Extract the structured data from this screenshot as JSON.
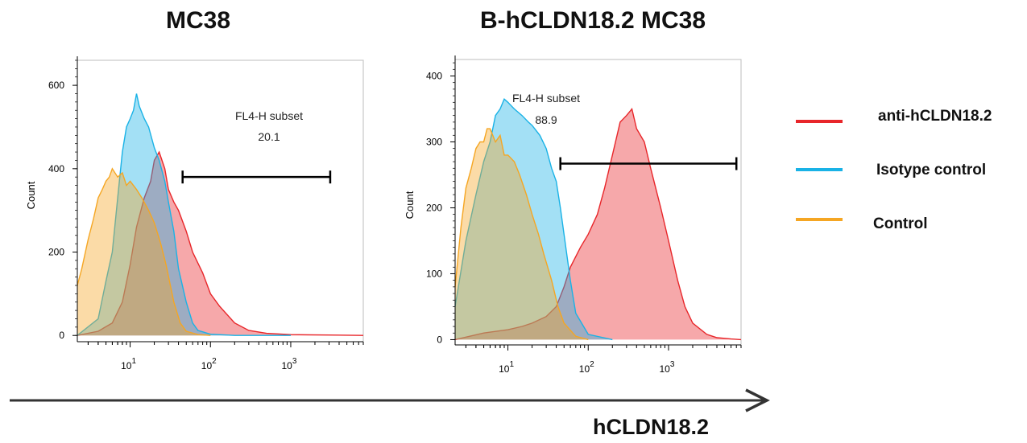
{
  "chart_data": [
    {
      "type": "area",
      "title": "MC38",
      "ylabel": "Count",
      "x_scale": "log",
      "xlim": [
        2.2,
        8000
      ],
      "ylim": [
        -15,
        660
      ],
      "yticks": [
        0,
        200,
        400,
        600
      ],
      "xticks": [
        {
          "value": 10,
          "label": "1"
        },
        {
          "value": 100,
          "label": "2"
        },
        {
          "value": 1000,
          "label": "3"
        }
      ],
      "gate": {
        "name": "FL4-H subset",
        "value": "20.1",
        "x_range": [
          45,
          3100
        ],
        "y": 380
      },
      "series": [
        {
          "name": "anti-hCLDN18.2",
          "color": "#e8262a",
          "x": [
            2.2,
            4,
            6,
            8,
            10,
            12,
            15,
            18,
            20,
            23,
            27,
            30,
            35,
            40,
            50,
            60,
            80,
            100,
            130,
            200,
            300,
            500,
            1000,
            3000,
            8000
          ],
          "y": [
            0,
            10,
            30,
            80,
            170,
            260,
            330,
            370,
            420,
            440,
            400,
            350,
            320,
            300,
            250,
            200,
            150,
            100,
            70,
            30,
            12,
            5,
            2,
            1,
            0
          ]
        },
        {
          "name": "Isotype control",
          "color": "#19b2e6",
          "x": [
            2.2,
            4,
            5,
            6,
            7,
            8,
            9,
            10,
            11,
            12,
            13,
            15,
            17,
            20,
            23,
            27,
            30,
            35,
            40,
            50,
            60,
            70,
            100,
            200,
            1000
          ],
          "y": [
            0,
            40,
            130,
            200,
            330,
            440,
            500,
            520,
            540,
            580,
            550,
            520,
            500,
            450,
            420,
            370,
            320,
            250,
            160,
            80,
            30,
            12,
            3,
            0,
            0
          ]
        },
        {
          "name": "Control",
          "color": "#f5a623",
          "x": [
            2.2,
            2.5,
            3,
            3.5,
            4,
            4.5,
            5,
            5.5,
            6,
            7,
            8,
            9,
            10,
            12,
            14,
            17,
            20,
            24,
            28,
            35,
            42,
            50,
            70,
            100
          ],
          "y": [
            120,
            160,
            230,
            280,
            330,
            350,
            370,
            380,
            400,
            380,
            390,
            360,
            370,
            350,
            330,
            300,
            270,
            220,
            170,
            80,
            30,
            10,
            2,
            0
          ]
        }
      ]
    },
    {
      "type": "area",
      "title": "B-hCLDN18.2 MC38",
      "ylabel": "Count",
      "x_scale": "log",
      "xlim": [
        2.2,
        8000
      ],
      "ylim": [
        -8,
        425
      ],
      "yticks": [
        0,
        100,
        200,
        300,
        400
      ],
      "xticks": [
        {
          "value": 10,
          "label": "1"
        },
        {
          "value": 100,
          "label": "2"
        },
        {
          "value": 1000,
          "label": "3"
        }
      ],
      "gate": {
        "name": "FL4-H subset",
        "value": "88.9",
        "x_range": [
          45,
          7000
        ],
        "y": 267
      },
      "series": [
        {
          "name": "anti-hCLDN18.2",
          "color": "#e8262a",
          "x": [
            2.2,
            5,
            10,
            15,
            20,
            30,
            40,
            50,
            60,
            80,
            100,
            130,
            160,
            200,
            250,
            300,
            350,
            400,
            500,
            600,
            800,
            1000,
            1300,
            1600,
            2000,
            3000,
            4000,
            6000,
            8000
          ],
          "y": [
            0,
            10,
            15,
            20,
            25,
            35,
            50,
            80,
            110,
            140,
            160,
            190,
            230,
            280,
            330,
            340,
            350,
            320,
            300,
            260,
            200,
            150,
            90,
            50,
            25,
            8,
            3,
            1,
            0
          ]
        },
        {
          "name": "Isotype control",
          "color": "#19b2e6",
          "x": [
            2.2,
            3,
            4,
            5,
            6,
            7,
            8,
            9,
            10,
            12,
            15,
            18,
            20,
            25,
            30,
            35,
            40,
            45,
            50,
            60,
            70,
            100,
            200
          ],
          "y": [
            50,
            150,
            220,
            270,
            300,
            340,
            350,
            365,
            360,
            350,
            340,
            330,
            325,
            310,
            290,
            260,
            240,
            200,
            160,
            90,
            40,
            8,
            0
          ]
        },
        {
          "name": "Control",
          "color": "#f5a623",
          "x": [
            2.2,
            2.6,
            3,
            3.5,
            4,
            4.5,
            5,
            5.5,
            6,
            7,
            8,
            9,
            10,
            12,
            14,
            17,
            20,
            24,
            28,
            35,
            42,
            50,
            70,
            100
          ],
          "y": [
            80,
            170,
            230,
            260,
            290,
            300,
            300,
            320,
            320,
            300,
            310,
            280,
            280,
            270,
            250,
            220,
            190,
            160,
            130,
            90,
            50,
            25,
            5,
            0
          ]
        }
      ]
    }
  ],
  "legend": [
    {
      "label": "anti-hCLDN18.2",
      "color": "#e8262a"
    },
    {
      "label": "Isotype control",
      "color": "#19b2e6"
    },
    {
      "label": "Control",
      "color": "#f5a623"
    }
  ],
  "axis_arrow_label": "hCLDN18.2"
}
